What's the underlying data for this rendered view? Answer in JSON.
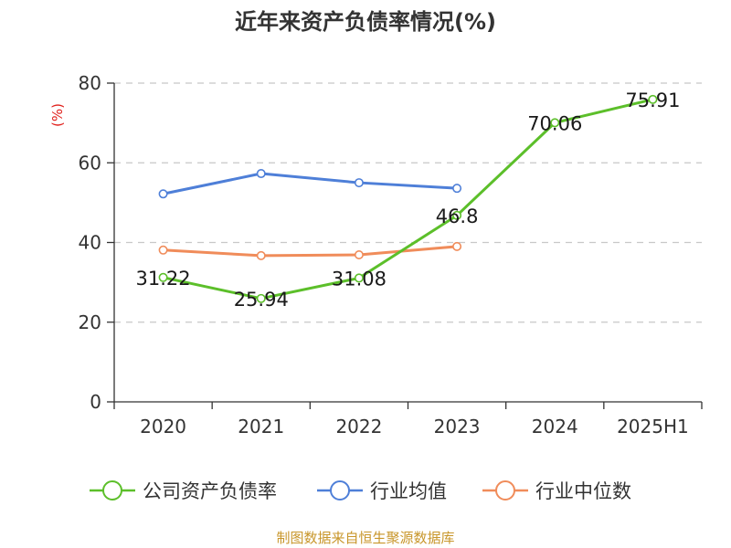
{
  "chart_data": {
    "type": "line",
    "title": "近年来资产负债率情况(%)",
    "ylabel": "(%)",
    "xlabel": "",
    "categories": [
      "2020",
      "2021",
      "2022",
      "2023",
      "2024",
      "2025H1"
    ],
    "ylim": [
      0,
      80
    ],
    "yticks": [
      0,
      20,
      40,
      60,
      80
    ],
    "grid": true,
    "legend_position": "bottom",
    "series": [
      {
        "name": "公司资产负债率",
        "color": "#5cbf2a",
        "values": [
          31.22,
          25.94,
          31.08,
          46.8,
          70.06,
          75.91
        ],
        "labels": [
          "31.22",
          "25.94",
          "31.08",
          "46.8",
          "70.06",
          "75.91"
        ]
      },
      {
        "name": "行业均值",
        "color": "#4e7fd8",
        "values": [
          52.2,
          57.3,
          55.0,
          53.6,
          null,
          null
        ]
      },
      {
        "name": "行业中位数",
        "color": "#f08c5a",
        "values": [
          38.1,
          36.7,
          36.9,
          39.0,
          null,
          null
        ]
      }
    ]
  },
  "source": "制图数据来自恒生聚源数据库"
}
